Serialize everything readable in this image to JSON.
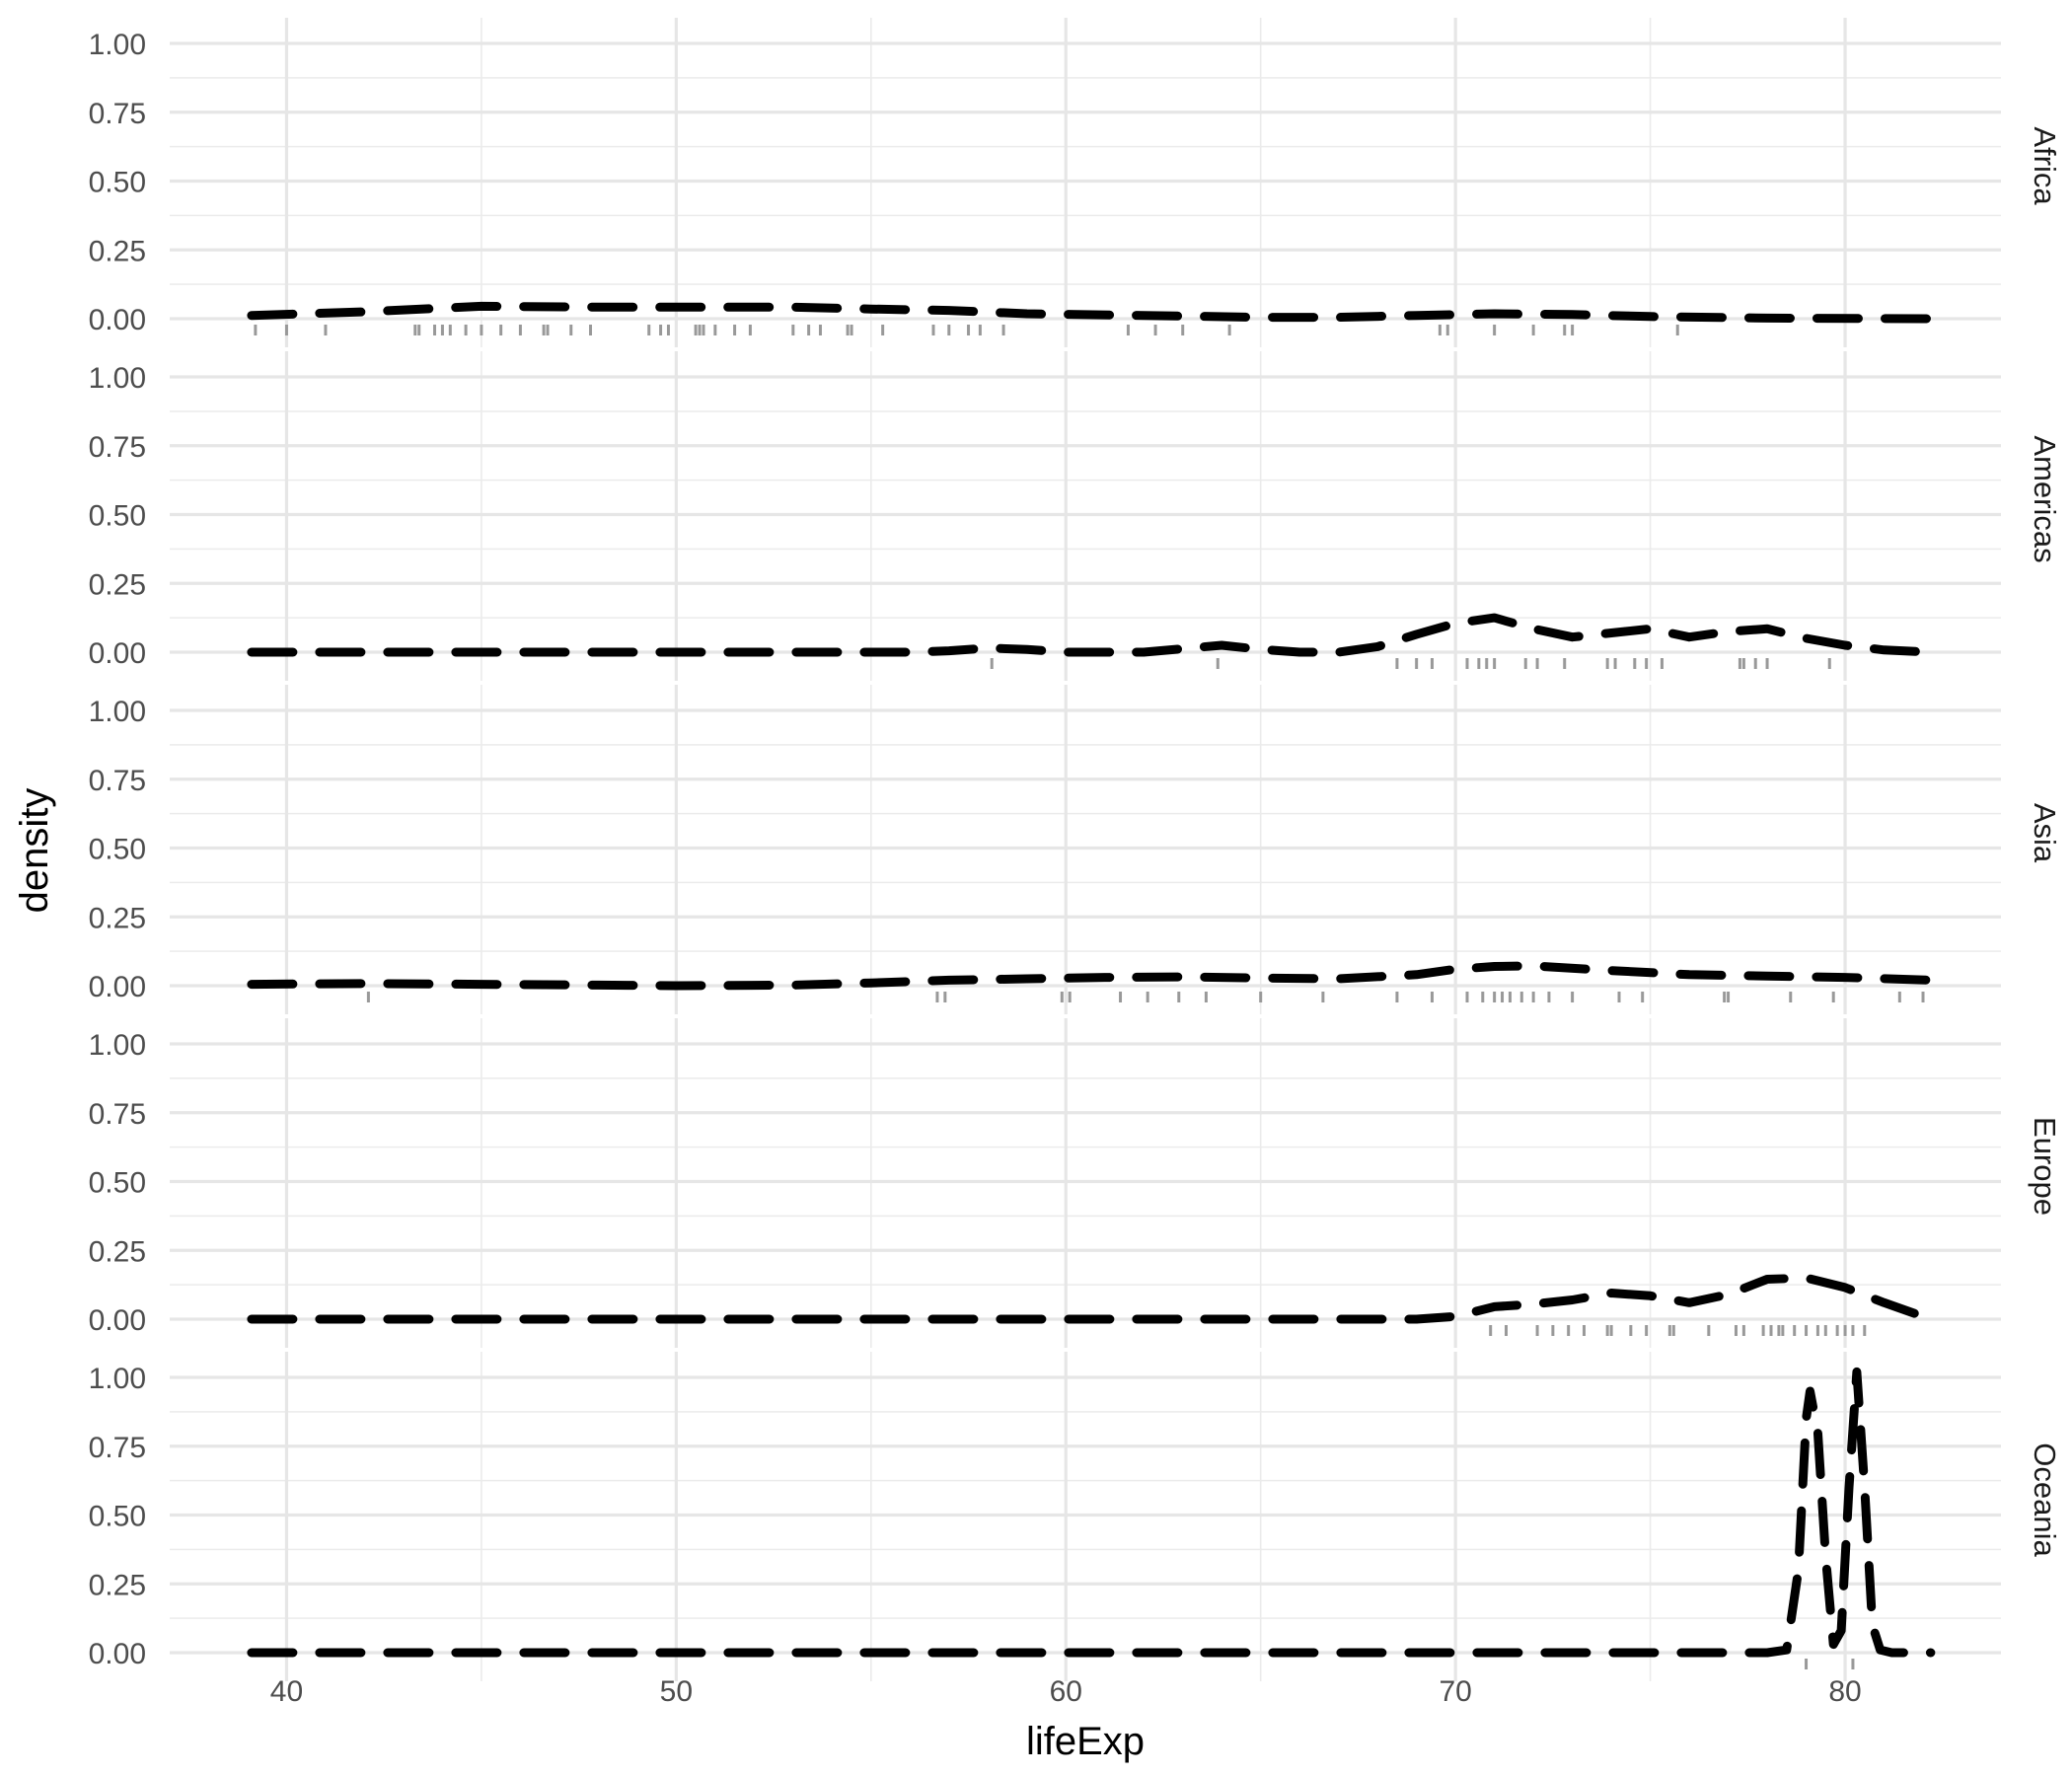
{
  "chart_data": {
    "type": "line",
    "geom": "density",
    "xlabel": "lifeExp",
    "ylabel": "density",
    "xlim": [
      37,
      84
    ],
    "ylim": [
      -0.03,
      1.05
    ],
    "x_ticks": [
      40,
      50,
      60,
      70,
      80
    ],
    "x_tick_labels": [
      "40",
      "50",
      "60",
      "70",
      "80"
    ],
    "y_ticks": [
      0,
      0.25,
      0.5,
      0.75,
      1.0
    ],
    "y_tick_labels": [
      "0.00",
      "0.25",
      "0.50",
      "0.75",
      "1.00"
    ],
    "grid": true,
    "line_style": "dashed",
    "line_color": "#000000",
    "rug_color": "#999999",
    "panels": [
      {
        "facet": "Africa",
        "density": {
          "x": [
            39.1,
            42,
            45,
            48,
            50,
            53,
            55,
            57,
            59,
            62,
            65,
            67,
            69,
            71,
            73,
            75,
            78,
            82.2
          ],
          "y": [
            0.012,
            0.025,
            0.045,
            0.042,
            0.042,
            0.042,
            0.035,
            0.03,
            0.018,
            0.012,
            0.005,
            0.005,
            0.012,
            0.018,
            0.015,
            0.008,
            0.002,
            0.0
          ]
        },
        "rug": [
          39.2,
          40.0,
          41.0,
          43.3,
          43.4,
          43.8,
          44.0,
          44.2,
          44.6,
          45.0,
          45.5,
          46.0,
          46.6,
          46.7,
          47.3,
          47.8,
          49.3,
          49.6,
          49.8,
          50.5,
          50.6,
          50.7,
          51.0,
          51.5,
          51.9,
          53.0,
          53.4,
          53.7,
          54.4,
          54.5,
          55.3,
          56.6,
          57.0,
          57.5,
          57.8,
          58.4,
          61.6,
          62.3,
          63.0,
          64.2,
          69.6,
          69.8,
          71.0,
          72.0,
          72.8,
          73.0,
          75.7
        ]
      },
      {
        "facet": "Americas",
        "density": {
          "x": [
            39.1,
            50,
            56,
            57,
            58,
            59,
            60,
            62,
            64,
            65,
            66,
            67,
            68,
            69,
            70,
            71,
            72,
            73,
            74,
            75,
            76,
            77,
            78,
            79,
            80,
            81,
            82.2
          ],
          "y": [
            0.0,
            0.0,
            0.0,
            0.005,
            0.015,
            0.01,
            0.0,
            0.0,
            0.025,
            0.01,
            0.0,
            0.0,
            0.02,
            0.065,
            0.105,
            0.125,
            0.085,
            0.055,
            0.07,
            0.085,
            0.055,
            0.075,
            0.085,
            0.05,
            0.025,
            0.008,
            0.0
          ]
        },
        "rug": [
          58.1,
          63.9,
          68.5,
          69.0,
          69.4,
          70.3,
          70.6,
          70.8,
          71.0,
          71.8,
          72.1,
          72.8,
          73.9,
          74.1,
          74.6,
          74.9,
          75.3,
          77.3,
          77.4,
          77.7,
          78.0,
          79.6
        ]
      },
      {
        "facet": "Asia",
        "density": {
          "x": [
            39.1,
            42,
            45,
            48,
            50,
            53,
            55,
            57,
            59,
            61,
            63,
            65,
            67,
            69,
            70,
            71,
            72,
            74,
            76,
            78,
            80,
            82.2
          ],
          "y": [
            0.005,
            0.008,
            0.005,
            0.002,
            0.0,
            0.002,
            0.01,
            0.02,
            0.025,
            0.03,
            0.032,
            0.028,
            0.025,
            0.04,
            0.06,
            0.07,
            0.072,
            0.055,
            0.04,
            0.035,
            0.03,
            0.02
          ]
        },
        "rug": [
          42.1,
          56.7,
          56.9,
          59.9,
          60.1,
          61.4,
          62.1,
          62.9,
          63.6,
          65.0,
          66.6,
          68.5,
          69.4,
          70.3,
          70.7,
          71.0,
          71.2,
          71.4,
          71.7,
          72.0,
          72.4,
          73.0,
          74.2,
          74.8,
          76.9,
          77.0,
          78.6,
          79.7,
          81.4,
          82.0
        ]
      },
      {
        "facet": "Europe",
        "density": {
          "x": [
            39.1,
            69,
            70,
            71,
            72,
            73,
            74,
            75,
            76,
            77,
            78,
            79,
            80,
            81,
            82.2
          ],
          "y": [
            0.0,
            0.0,
            0.01,
            0.045,
            0.055,
            0.07,
            0.095,
            0.085,
            0.06,
            0.09,
            0.145,
            0.15,
            0.115,
            0.06,
            0.0
          ]
        },
        "rug": [
          70.9,
          71.3,
          72.1,
          72.5,
          72.9,
          73.3,
          73.9,
          74.0,
          74.5,
          74.9,
          75.5,
          75.6,
          76.5,
          77.2,
          77.4,
          77.9,
          78.1,
          78.3,
          78.4,
          78.7,
          79.0,
          79.3,
          79.5,
          79.8,
          80.0,
          80.2,
          80.5
        ]
      },
      {
        "facet": "Oceania",
        "density": {
          "x": [
            39.1,
            78,
            78.5,
            78.8,
            79.0,
            79.1,
            79.3,
            79.5,
            79.7,
            79.9,
            80.1,
            80.3,
            80.5,
            80.7,
            80.9,
            81.2,
            82.2
          ],
          "y": [
            0.0,
            0.0,
            0.01,
            0.3,
            0.85,
            0.95,
            0.8,
            0.35,
            0.03,
            0.08,
            0.6,
            1.02,
            0.6,
            0.1,
            0.01,
            0.0,
            0.0
          ]
        },
        "rug": [
          79.0,
          80.2
        ]
      }
    ]
  }
}
